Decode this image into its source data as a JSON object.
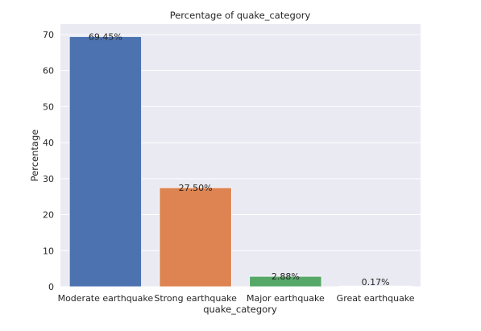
{
  "chart_data": {
    "type": "bar",
    "title": "Percentage of quake_category",
    "xlabel": "quake_category",
    "ylabel": "Percentage",
    "categories": [
      "Moderate earthquake",
      "Strong earthquake",
      "Major earthquake",
      "Great earthquake"
    ],
    "values": [
      69.45,
      27.5,
      2.88,
      0.17
    ],
    "data_labels": [
      "69.45%",
      "27.50%",
      "2.88%",
      "0.17%"
    ],
    "colors": [
      "#4c72b0",
      "#dd8452",
      "#55a868",
      "#c44e52"
    ],
    "ylim": [
      0,
      72.9
    ],
    "yticks": [
      0,
      10,
      20,
      30,
      40,
      50,
      60,
      70
    ],
    "grid": true,
    "background": "#eaeaf2"
  }
}
